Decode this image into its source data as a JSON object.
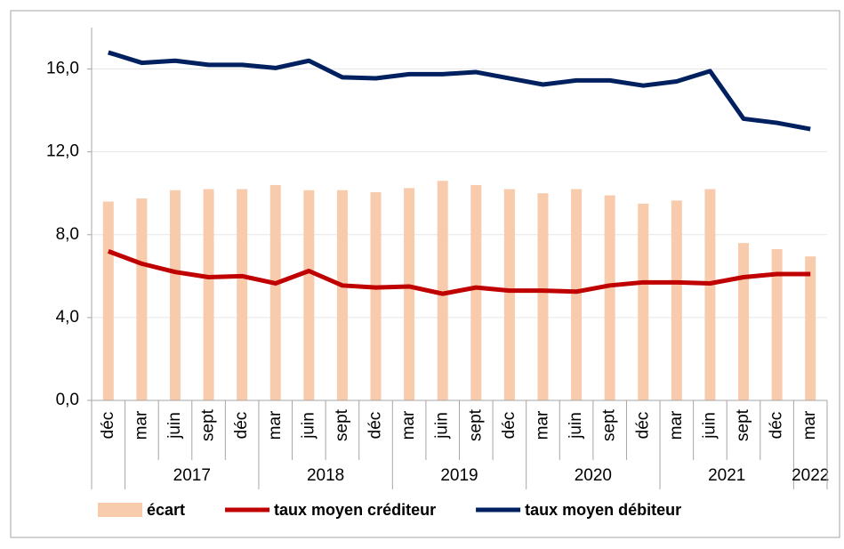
{
  "chart_data": {
    "type": "bar-line",
    "categories": [
      "déc",
      "mar",
      "juin",
      "sept",
      "déc",
      "mar",
      "juin",
      "sept",
      "déc",
      "mar",
      "juin",
      "sept",
      "déc",
      "mar",
      "juin",
      "sept",
      "déc",
      "mar",
      "juin",
      "sept",
      "déc",
      "mar"
    ],
    "category_groups": [
      {
        "label": null,
        "size": 1
      },
      {
        "label": "2017",
        "size": 4
      },
      {
        "label": "2018",
        "size": 4
      },
      {
        "label": "2019",
        "size": 4
      },
      {
        "label": "2020",
        "size": 4
      },
      {
        "label": "2021",
        "size": 4
      },
      {
        "label": "2022",
        "size": 1
      }
    ],
    "series": [
      {
        "name": "écart",
        "kind": "bar",
        "color": "#f8cbad",
        "values": [
          9.6,
          9.75,
          10.15,
          10.2,
          10.2,
          10.4,
          10.15,
          10.15,
          10.05,
          10.25,
          10.6,
          10.4,
          10.2,
          10.0,
          10.2,
          9.9,
          9.5,
          9.65,
          10.2,
          7.6,
          7.3,
          6.95
        ]
      },
      {
        "name": "taux moyen créditeur",
        "kind": "line",
        "color": "#c00000",
        "values": [
          7.2,
          6.6,
          6.2,
          5.95,
          6.0,
          5.65,
          6.25,
          5.55,
          5.45,
          5.5,
          5.15,
          5.45,
          5.3,
          5.3,
          5.25,
          5.55,
          5.7,
          5.7,
          5.65,
          5.95,
          6.1,
          6.1
        ]
      },
      {
        "name": "taux moyen débiteur",
        "kind": "line",
        "color": "#002060",
        "values": [
          16.8,
          16.3,
          16.4,
          16.2,
          16.2,
          16.05,
          16.4,
          15.6,
          15.55,
          15.75,
          15.75,
          15.85,
          15.55,
          15.25,
          15.45,
          15.45,
          15.2,
          15.4,
          15.9,
          13.6,
          13.4,
          13.1
        ]
      }
    ],
    "ylim": [
      0,
      18
    ],
    "yticks": [
      {
        "value": 0,
        "label": "0,0"
      },
      {
        "value": 4,
        "label": "4,0"
      },
      {
        "value": 8,
        "label": "8,0"
      },
      {
        "value": 12,
        "label": "12,0"
      },
      {
        "value": 16,
        "label": "16,0"
      }
    ],
    "grid": true,
    "legend": "bottom"
  }
}
